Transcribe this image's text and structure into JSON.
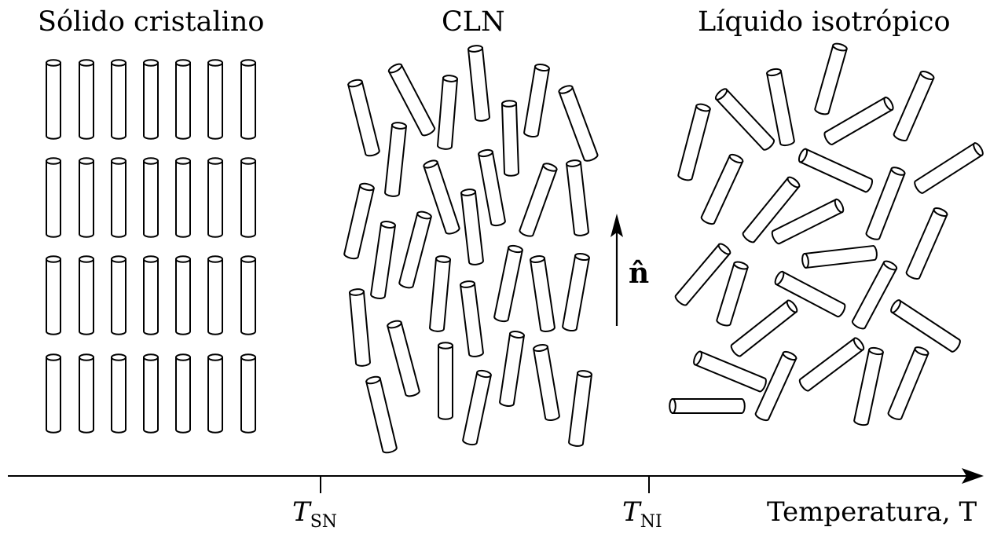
{
  "panels": {
    "solid": {
      "title": "Sólido cristalino"
    },
    "nematic": {
      "title": "CLN"
    },
    "liquid": {
      "title": "Líquido isotrópico"
    }
  },
  "director": {
    "symbol": "n̂"
  },
  "axis": {
    "label": "Temperatura, T",
    "ticks": [
      {
        "symbol": "T",
        "subscript": "SN"
      },
      {
        "symbol": "T",
        "subscript": "NI"
      }
    ]
  },
  "icons": [
    "rod-icon",
    "arrow-icon"
  ]
}
